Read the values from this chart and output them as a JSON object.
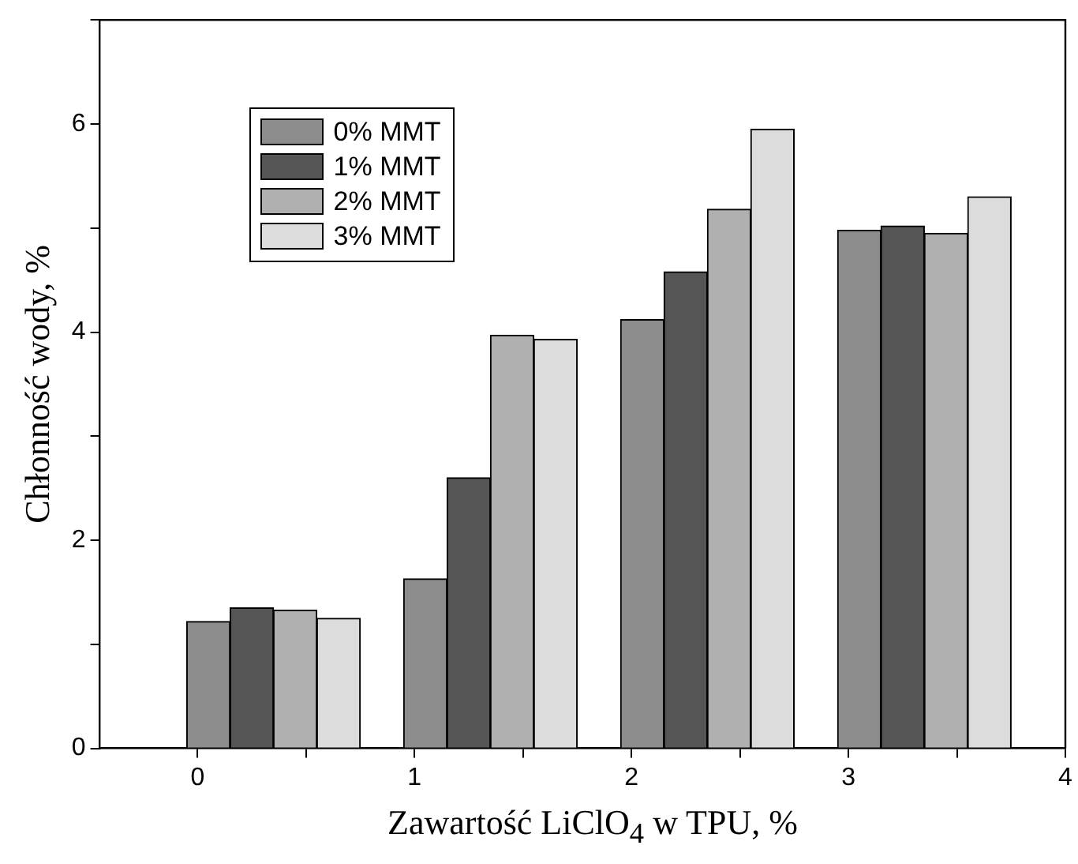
{
  "chart_data": {
    "type": "bar",
    "xlabel": "Zawartość LiClO$_{4}$ w TPU, %",
    "ylabel": "Chłonność wody, %",
    "xlim": [
      -0.45,
      4
    ],
    "xticks": [
      0,
      {
        "value": 0.5,
        "label": null
      },
      1,
      {
        "value": 1.5,
        "label": null
      },
      2,
      {
        "value": 2.5,
        "label": null
      },
      3,
      {
        "value": 3.5,
        "label": null
      },
      4
    ],
    "ylim": [
      0,
      7
    ],
    "yticks": [
      0,
      {
        "value": 1,
        "label": null
      },
      2,
      {
        "value": 3,
        "label": null
      },
      4,
      {
        "value": 5,
        "label": null
      },
      6,
      {
        "value": 7,
        "label": null
      }
    ],
    "grid": false,
    "legend": "top left",
    "series": [
      {
        "name": "0% MMT",
        "color": "#8c8c8c",
        "x": [
          0.05,
          1.05,
          2.05,
          3.05
        ],
        "values": [
          1.22,
          1.63,
          4.12,
          4.98
        ]
      },
      {
        "name": "1% MMT",
        "color": "#555555",
        "x": [
          0.25,
          1.25,
          2.25,
          3.25
        ],
        "values": [
          1.35,
          2.6,
          4.58,
          5.02
        ]
      },
      {
        "name": "2% MMT",
        "color": "#b0b0b0",
        "x": [
          0.45,
          1.45,
          2.45,
          3.45
        ],
        "values": [
          1.33,
          3.97,
          5.18,
          4.95
        ]
      },
      {
        "name": "3% MMT",
        "color": "#dcdcdc",
        "x": [
          0.65,
          1.65,
          2.65,
          3.65
        ],
        "values": [
          1.25,
          3.93,
          5.95,
          5.3
        ]
      }
    ]
  }
}
